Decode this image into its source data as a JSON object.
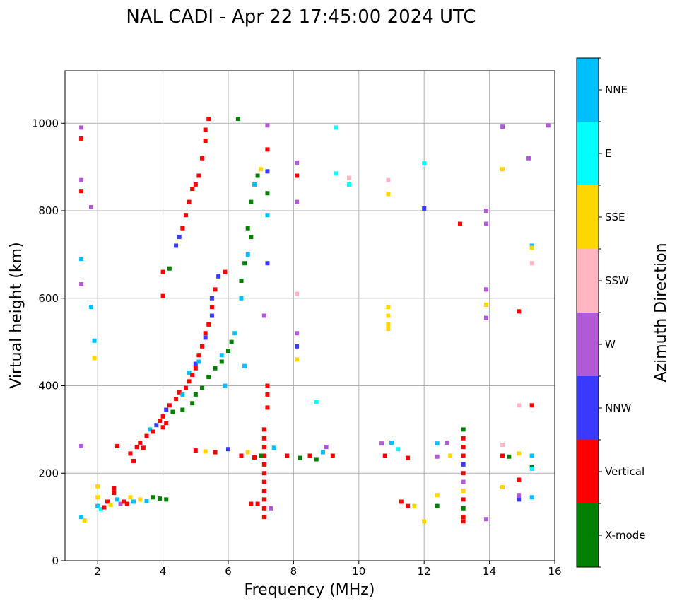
{
  "chart_data": {
    "type": "scatter",
    "title": "NAL CADI - Apr 22 17:45:00 2024 UTC",
    "xlabel": "Frequency (MHz)",
    "ylabel": "Virtual height (km)",
    "xlim": [
      1,
      16
    ],
    "ylim": [
      0,
      1120
    ],
    "xticks": [
      2,
      4,
      6,
      8,
      10,
      12,
      14,
      16
    ],
    "yticks": [
      0,
      200,
      400,
      600,
      800,
      1000
    ],
    "grid": true,
    "colorbar": {
      "label": "Azimuth Direction",
      "categories": [
        {
          "name": "X-mode",
          "color": "#008000"
        },
        {
          "name": "Vertical",
          "color": "#ff0000"
        },
        {
          "name": "NNW",
          "color": "#3a3aff"
        },
        {
          "name": "W",
          "color": "#b05ad6"
        },
        {
          "name": "SSW",
          "color": "#ffb6c1"
        },
        {
          "name": "SSE",
          "color": "#ffd700"
        },
        {
          "name": "E",
          "color": "#00ffff"
        },
        {
          "name": "NNE",
          "color": "#00bfff"
        }
      ]
    },
    "points": [
      [
        1.5,
        990,
        "W"
      ],
      [
        1.5,
        965,
        "Vertical"
      ],
      [
        1.5,
        870,
        "W"
      ],
      [
        1.5,
        845,
        "Vertical"
      ],
      [
        1.5,
        690,
        "NNE"
      ],
      [
        1.5,
        632,
        "W"
      ],
      [
        1.5,
        262,
        "W"
      ],
      [
        1.5,
        100,
        "NNE"
      ],
      [
        1.6,
        92,
        "SSE"
      ],
      [
        1.8,
        808,
        "W"
      ],
      [
        1.8,
        580,
        "NNE"
      ],
      [
        1.9,
        503,
        "NNE"
      ],
      [
        1.9,
        463,
        "SSE"
      ],
      [
        2.0,
        170,
        "SSE"
      ],
      [
        2.0,
        145,
        "SSE"
      ],
      [
        2.0,
        125,
        "NNE"
      ],
      [
        2.1,
        118,
        "E"
      ],
      [
        2.2,
        122,
        "Vertical"
      ],
      [
        2.3,
        135,
        "Vertical"
      ],
      [
        2.4,
        128,
        "SSE"
      ],
      [
        2.5,
        155,
        "Vertical"
      ],
      [
        2.5,
        165,
        "Vertical"
      ],
      [
        2.6,
        140,
        "NNE"
      ],
      [
        2.7,
        130,
        "W"
      ],
      [
        2.8,
        135,
        "Vertical"
      ],
      [
        2.9,
        130,
        "Vertical"
      ],
      [
        3.0,
        145,
        "SSE"
      ],
      [
        3.1,
        135,
        "NNE"
      ],
      [
        3.3,
        140,
        "SSE"
      ],
      [
        3.5,
        137,
        "NNE"
      ],
      [
        3.7,
        145,
        "X-mode"
      ],
      [
        3.9,
        142,
        "X-mode"
      ],
      [
        4.1,
        140,
        "X-mode"
      ],
      [
        2.6,
        262,
        "Vertical"
      ],
      [
        3.0,
        245,
        "Vertical"
      ],
      [
        3.1,
        228,
        "Vertical"
      ],
      [
        3.2,
        260,
        "Vertical"
      ],
      [
        3.3,
        270,
        "Vertical"
      ],
      [
        3.4,
        258,
        "Vertical"
      ],
      [
        3.5,
        285,
        "Vertical"
      ],
      [
        3.6,
        300,
        "NNE"
      ],
      [
        3.7,
        295,
        "Vertical"
      ],
      [
        3.8,
        310,
        "NNW"
      ],
      [
        3.9,
        320,
        "Vertical"
      ],
      [
        4.0,
        330,
        "Vertical"
      ],
      [
        4.0,
        305,
        "Vertical"
      ],
      [
        4.1,
        345,
        "NNW"
      ],
      [
        4.1,
        315,
        "Vertical"
      ],
      [
        4.2,
        355,
        "Vertical"
      ],
      [
        4.3,
        340,
        "X-mode"
      ],
      [
        4.4,
        370,
        "Vertical"
      ],
      [
        4.5,
        385,
        "Vertical"
      ],
      [
        4.6,
        380,
        "NNE"
      ],
      [
        4.6,
        345,
        "X-mode"
      ],
      [
        4.7,
        395,
        "Vertical"
      ],
      [
        4.8,
        410,
        "Vertical"
      ],
      [
        4.8,
        430,
        "NNE"
      ],
      [
        4.9,
        425,
        "Vertical"
      ],
      [
        4.9,
        360,
        "X-mode"
      ],
      [
        5.0,
        440,
        "Vertical"
      ],
      [
        5.0,
        450,
        "NNW"
      ],
      [
        5.0,
        380,
        "X-mode"
      ],
      [
        5.1,
        470,
        "Vertical"
      ],
      [
        5.1,
        455,
        "NNE"
      ],
      [
        5.2,
        490,
        "Vertical"
      ],
      [
        5.2,
        395,
        "X-mode"
      ],
      [
        5.3,
        510,
        "NNW"
      ],
      [
        5.3,
        520,
        "Vertical"
      ],
      [
        5.4,
        540,
        "Vertical"
      ],
      [
        5.4,
        420,
        "X-mode"
      ],
      [
        5.5,
        560,
        "NNW"
      ],
      [
        5.5,
        580,
        "Vertical"
      ],
      [
        5.5,
        600,
        "NNW"
      ],
      [
        5.6,
        620,
        "Vertical"
      ],
      [
        5.6,
        440,
        "X-mode"
      ],
      [
        5.7,
        650,
        "NNW"
      ],
      [
        5.8,
        455,
        "X-mode"
      ],
      [
        5.8,
        470,
        "NNE"
      ],
      [
        5.9,
        660,
        "Vertical"
      ],
      [
        5.9,
        400,
        "NNE"
      ],
      [
        6.0,
        480,
        "X-mode"
      ],
      [
        6.1,
        500,
        "X-mode"
      ],
      [
        6.2,
        520,
        "NNE"
      ],
      [
        4.0,
        660,
        "Vertical"
      ],
      [
        4.0,
        605,
        "Vertical"
      ],
      [
        4.2,
        668,
        "X-mode"
      ],
      [
        4.4,
        720,
        "NNW"
      ],
      [
        4.5,
        740,
        "NNW"
      ],
      [
        4.6,
        760,
        "Vertical"
      ],
      [
        4.7,
        790,
        "Vertical"
      ],
      [
        4.8,
        820,
        "Vertical"
      ],
      [
        4.9,
        850,
        "Vertical"
      ],
      [
        5.0,
        860,
        "Vertical"
      ],
      [
        5.1,
        880,
        "Vertical"
      ],
      [
        5.2,
        920,
        "Vertical"
      ],
      [
        5.3,
        960,
        "Vertical"
      ],
      [
        5.3,
        985,
        "Vertical"
      ],
      [
        5.4,
        1010,
        "Vertical"
      ],
      [
        6.3,
        1010,
        "X-mode"
      ],
      [
        6.4,
        600,
        "NNE"
      ],
      [
        6.4,
        640,
        "X-mode"
      ],
      [
        6.5,
        680,
        "X-mode"
      ],
      [
        6.5,
        445,
        "NNE"
      ],
      [
        6.6,
        700,
        "NNE"
      ],
      [
        6.6,
        760,
        "X-mode"
      ],
      [
        6.7,
        740,
        "X-mode"
      ],
      [
        6.7,
        820,
        "X-mode"
      ],
      [
        6.8,
        860,
        "NNE"
      ],
      [
        6.9,
        880,
        "X-mode"
      ],
      [
        7.0,
        895,
        "SSE"
      ],
      [
        7.1,
        560,
        "W"
      ],
      [
        7.2,
        995,
        "W"
      ],
      [
        7.2,
        940,
        "Vertical"
      ],
      [
        7.2,
        890,
        "NNW"
      ],
      [
        7.2,
        840,
        "X-mode"
      ],
      [
        7.2,
        790,
        "NNE"
      ],
      [
        7.2,
        680,
        "NNW"
      ],
      [
        7.2,
        400,
        "Vertical"
      ],
      [
        7.2,
        380,
        "Vertical"
      ],
      [
        7.2,
        350,
        "Vertical"
      ],
      [
        7.1,
        300,
        "Vertical"
      ],
      [
        7.1,
        280,
        "Vertical"
      ],
      [
        7.1,
        260,
        "Vertical"
      ],
      [
        7.1,
        240,
        "Vertical"
      ],
      [
        7.1,
        220,
        "Vertical"
      ],
      [
        7.1,
        200,
        "Vertical"
      ],
      [
        7.1,
        180,
        "Vertical"
      ],
      [
        7.1,
        160,
        "Vertical"
      ],
      [
        7.1,
        140,
        "Vertical"
      ],
      [
        7.1,
        120,
        "Vertical"
      ],
      [
        7.1,
        100,
        "Vertical"
      ],
      [
        7.3,
        120,
        "W"
      ],
      [
        6.7,
        130,
        "Vertical"
      ],
      [
        6.9,
        130,
        "Vertical"
      ],
      [
        5.0,
        252,
        "Vertical"
      ],
      [
        5.3,
        250,
        "SSE"
      ],
      [
        5.6,
        248,
        "Vertical"
      ],
      [
        6.0,
        255,
        "NNW"
      ],
      [
        6.4,
        240,
        "Vertical"
      ],
      [
        6.6,
        248,
        "SSE"
      ],
      [
        6.8,
        236,
        "Vertical"
      ],
      [
        7.0,
        240,
        "X-mode"
      ],
      [
        7.4,
        258,
        "NNE"
      ],
      [
        7.8,
        240,
        "Vertical"
      ],
      [
        8.2,
        235,
        "X-mode"
      ],
      [
        8.5,
        240,
        "Vertical"
      ],
      [
        8.7,
        232,
        "X-mode"
      ],
      [
        8.9,
        248,
        "NNE"
      ],
      [
        9.0,
        260,
        "W"
      ],
      [
        9.2,
        240,
        "Vertical"
      ],
      [
        8.7,
        362,
        "E"
      ],
      [
        8.1,
        460,
        "SSE"
      ],
      [
        8.1,
        490,
        "NNW"
      ],
      [
        8.1,
        520,
        "W"
      ],
      [
        8.1,
        610,
        "SSW"
      ],
      [
        8.1,
        820,
        "W"
      ],
      [
        8.1,
        880,
        "Vertical"
      ],
      [
        8.1,
        910,
        "W"
      ],
      [
        9.3,
        990,
        "E"
      ],
      [
        9.3,
        885,
        "E"
      ],
      [
        9.7,
        875,
        "SSW"
      ],
      [
        9.7,
        860,
        "E"
      ],
      [
        10.7,
        268,
        "W"
      ],
      [
        10.8,
        240,
        "Vertical"
      ],
      [
        11.0,
        270,
        "NNE"
      ],
      [
        11.2,
        255,
        "E"
      ],
      [
        11.5,
        235,
        "Vertical"
      ],
      [
        10.9,
        580,
        "SSE"
      ],
      [
        10.9,
        560,
        "SSE"
      ],
      [
        10.9,
        540,
        "SSE"
      ],
      [
        10.9,
        530,
        "SSE"
      ],
      [
        10.9,
        870,
        "SSW"
      ],
      [
        10.9,
        838,
        "SSE"
      ],
      [
        11.3,
        135,
        "Vertical"
      ],
      [
        11.5,
        125,
        "Vertical"
      ],
      [
        11.7,
        125,
        "SSE"
      ],
      [
        12.0,
        908,
        "E"
      ],
      [
        12.0,
        805,
        "NNW"
      ],
      [
        12.0,
        90,
        "SSE"
      ],
      [
        12.4,
        268,
        "NNE"
      ],
      [
        12.4,
        238,
        "W"
      ],
      [
        12.4,
        150,
        "SSE"
      ],
      [
        12.4,
        125,
        "X-mode"
      ],
      [
        12.7,
        270,
        "W"
      ],
      [
        12.8,
        240,
        "SSE"
      ],
      [
        13.1,
        770,
        "Vertical"
      ],
      [
        13.2,
        300,
        "X-mode"
      ],
      [
        13.2,
        280,
        "Vertical"
      ],
      [
        13.2,
        260,
        "Vertical"
      ],
      [
        13.2,
        240,
        "Vertical"
      ],
      [
        13.2,
        220,
        "NNW"
      ],
      [
        13.2,
        200,
        "Vertical"
      ],
      [
        13.2,
        180,
        "W"
      ],
      [
        13.2,
        160,
        "SSE"
      ],
      [
        13.2,
        140,
        "Vertical"
      ],
      [
        13.2,
        120,
        "X-mode"
      ],
      [
        13.2,
        100,
        "Vertical"
      ],
      [
        13.2,
        90,
        "Vertical"
      ],
      [
        13.9,
        800,
        "W"
      ],
      [
        13.9,
        770,
        "W"
      ],
      [
        13.9,
        620,
        "W"
      ],
      [
        13.9,
        585,
        "SSE"
      ],
      [
        13.9,
        555,
        "W"
      ],
      [
        13.9,
        95,
        "W"
      ],
      [
        14.4,
        992,
        "W"
      ],
      [
        14.4,
        895,
        "SSE"
      ],
      [
        14.4,
        265,
        "SSW"
      ],
      [
        14.4,
        240,
        "Vertical"
      ],
      [
        14.6,
        238,
        "X-mode"
      ],
      [
        14.4,
        168,
        "SSE"
      ],
      [
        14.9,
        570,
        "Vertical"
      ],
      [
        14.9,
        355,
        "SSW"
      ],
      [
        14.9,
        245,
        "SSE"
      ],
      [
        14.9,
        185,
        "Vertical"
      ],
      [
        14.9,
        150,
        "W"
      ],
      [
        14.9,
        140,
        "NNW"
      ],
      [
        15.2,
        920,
        "W"
      ],
      [
        15.3,
        720,
        "NNE"
      ],
      [
        15.3,
        715,
        "SSE"
      ],
      [
        15.3,
        680,
        "SSW"
      ],
      [
        15.3,
        355,
        "Vertical"
      ],
      [
        15.3,
        240,
        "NNE"
      ],
      [
        15.3,
        215,
        "X-mode"
      ],
      [
        15.3,
        210,
        "E"
      ],
      [
        15.3,
        145,
        "NNE"
      ],
      [
        15.8,
        995,
        "W"
      ]
    ]
  }
}
